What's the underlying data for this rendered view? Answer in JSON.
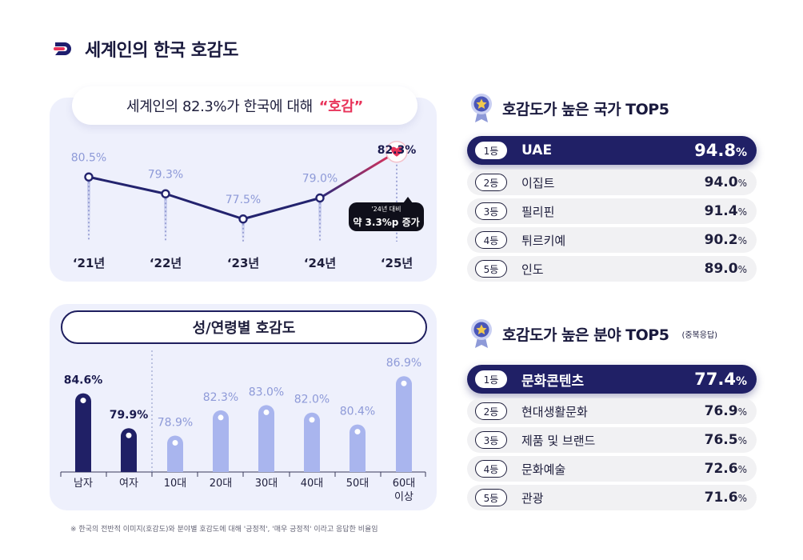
{
  "header": {
    "title": "세계인의 한국 호감도"
  },
  "trend": {
    "headline": "세계인의 82.3%가 한국에 대해",
    "headline_accent": "“호감”",
    "callout_line1": "'24년 대비",
    "callout_line2": "약 3.3%p 증가"
  },
  "demographics": {
    "title": "성/연령별 호감도"
  },
  "top_countries": {
    "title": "호감도가 높은 국가 TOP5",
    "items": [
      {
        "rank": "1등",
        "name": "UAE",
        "value": "94.8",
        "unit": "%"
      },
      {
        "rank": "2등",
        "name": "이집트",
        "value": "94.0",
        "unit": "%"
      },
      {
        "rank": "3등",
        "name": "필리핀",
        "value": "91.4",
        "unit": "%"
      },
      {
        "rank": "4등",
        "name": "튀르키예",
        "value": "90.2",
        "unit": "%"
      },
      {
        "rank": "5등",
        "name": "인도",
        "value": "89.0",
        "unit": "%"
      }
    ]
  },
  "top_fields": {
    "title": "호감도가 높은 분야 TOP5",
    "note": "(중복응답)",
    "items": [
      {
        "rank": "1등",
        "name": "문화콘텐츠",
        "value": "77.4",
        "unit": "%"
      },
      {
        "rank": "2등",
        "name": "현대생활문화",
        "value": "76.9",
        "unit": "%"
      },
      {
        "rank": "3등",
        "name": "제품 및 브랜드",
        "value": "76.5",
        "unit": "%"
      },
      {
        "rank": "4등",
        "name": "문화예술",
        "value": "72.6",
        "unit": "%"
      },
      {
        "rank": "5등",
        "name": "관광",
        "value": "71.6",
        "unit": "%"
      }
    ]
  },
  "footnote": "※ 한국의 전반적 이미지(호감도)와 분야별 호감도에 대해 '긍정적', '매우 긍정적' 이라고 응답한 비율임",
  "colors": {
    "navy": "#202066",
    "light_blue": "#a9b5ee",
    "accent_red": "#e8335a",
    "panel_bg": "#eef0fc"
  },
  "chart_data": [
    {
      "type": "line",
      "title": "세계인의 82.3%가 한국에 대해 “호감”",
      "categories": [
        "‘21년",
        "‘22년",
        "‘23년",
        "‘24년",
        "‘25년"
      ],
      "values": [
        80.5,
        79.3,
        77.5,
        79.0,
        82.3
      ],
      "labels": [
        "80.5%",
        "79.3%",
        "77.5%",
        "79.0%",
        "82.3%"
      ],
      "ylim": [
        76,
        84
      ]
    },
    {
      "type": "bar",
      "title": "성/연령별 호감도",
      "categories": [
        "남자",
        "여자",
        "10대",
        "20대",
        "30대",
        "40대",
        "50대",
        "60대 이상"
      ],
      "values": [
        84.6,
        79.9,
        78.9,
        82.3,
        83.0,
        82.0,
        80.4,
        86.9
      ],
      "labels": [
        "84.6%",
        "79.9%",
        "78.9%",
        "82.3%",
        "83.0%",
        "82.0%",
        "80.4%",
        "86.9%"
      ],
      "groups": [
        "gender",
        "gender",
        "age",
        "age",
        "age",
        "age",
        "age",
        "age"
      ],
      "ylim": [
        74,
        88
      ]
    }
  ]
}
